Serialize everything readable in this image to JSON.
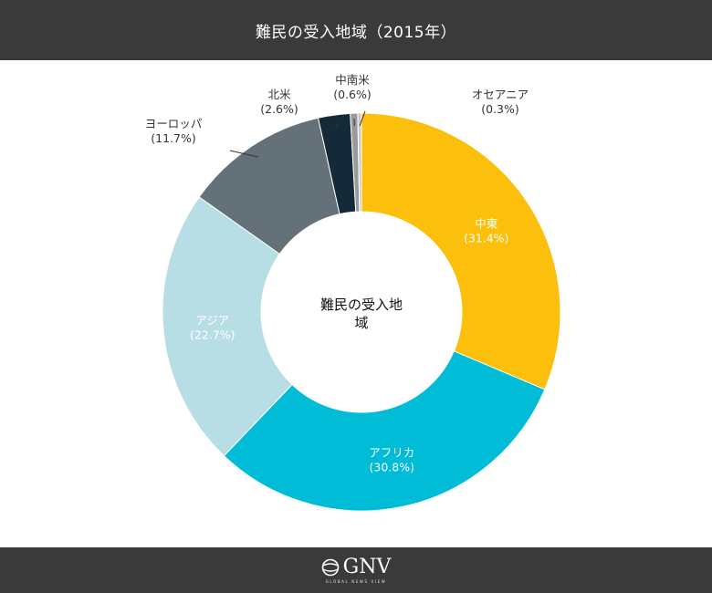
{
  "header": {
    "title": "難民の受入地域（2015年）"
  },
  "footer": {
    "logo_text": "GNV",
    "logo_tagline": "GLOBAL NEWS VIEW"
  },
  "chart_data": {
    "type": "pie",
    "donut": true,
    "title": "難民の受入地域（2015年）",
    "center_label": [
      "難民の受入地",
      "域"
    ],
    "slices": [
      {
        "label": "中東",
        "value": 31.4,
        "value_label": "(31.4%)",
        "color": "#fbbf0c",
        "label_color": "#ffffff",
        "label_position": "inside"
      },
      {
        "label": "アフリカ",
        "value": 30.8,
        "value_label": "(30.8%)",
        "color": "#00bcd6",
        "label_color": "#ffffff",
        "label_position": "inside"
      },
      {
        "label": "アジア",
        "value": 22.7,
        "value_label": "(22.7%)",
        "color": "#b7dde5",
        "label_color": "#ffffff",
        "label_position": "inside"
      },
      {
        "label": "ヨーロッパ",
        "value": 11.7,
        "value_label": "(11.7%)",
        "color": "#647178",
        "label_color": "#333333",
        "label_position": "outside"
      },
      {
        "label": "北米",
        "value": 2.6,
        "value_label": "(2.6%)",
        "color": "#152a38",
        "label_color": "#333333",
        "label_position": "outside"
      },
      {
        "label": "中南米",
        "value": 0.6,
        "value_label": "(0.6%)",
        "color": "#9a9a9a",
        "label_color": "#333333",
        "label_position": "outside"
      },
      {
        "label": "オセアニア",
        "value": 0.3,
        "value_label": "(0.3%)",
        "color": "#c9c9c9",
        "label_color": "#333333",
        "label_position": "outside"
      }
    ]
  }
}
